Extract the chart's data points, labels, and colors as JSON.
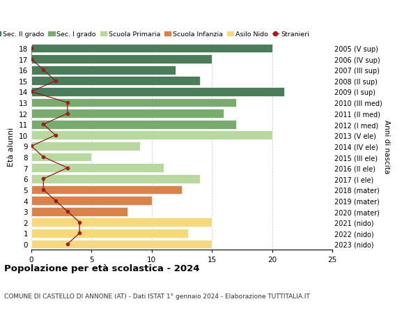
{
  "ages": [
    18,
    17,
    16,
    15,
    14,
    13,
    12,
    11,
    10,
    9,
    8,
    7,
    6,
    5,
    4,
    3,
    2,
    1,
    0
  ],
  "bar_values": [
    20,
    15,
    12,
    14,
    21,
    17,
    16,
    17,
    20,
    9,
    5,
    11,
    14,
    12.5,
    10,
    8,
    15,
    13,
    15
  ],
  "right_labels": [
    "2005 (V sup)",
    "2006 (IV sup)",
    "2007 (III sup)",
    "2008 (II sup)",
    "2009 (I sup)",
    "2010 (III med)",
    "2011 (II med)",
    "2012 (I med)",
    "2013 (V ele)",
    "2014 (IV ele)",
    "2015 (III ele)",
    "2016 (II ele)",
    "2017 (I ele)",
    "2018 (mater)",
    "2019 (mater)",
    "2020 (mater)",
    "2021 (nido)",
    "2022 (nido)",
    "2023 (nido)"
  ],
  "bar_colors": [
    "#4a7c59",
    "#4a7c59",
    "#4a7c59",
    "#4a7c59",
    "#4a7c59",
    "#7aab6e",
    "#7aab6e",
    "#7aab6e",
    "#b8d8a0",
    "#b8d8a0",
    "#b8d8a0",
    "#b8d8a0",
    "#b8d8a0",
    "#d9824a",
    "#d9824a",
    "#d9824a",
    "#f5d97a",
    "#f5d97a",
    "#f5d97a"
  ],
  "stranieri_vals": [
    0,
    0,
    1,
    2,
    0,
    3,
    3,
    1,
    2,
    0,
    1,
    3,
    1,
    1,
    2,
    3,
    4,
    4,
    3
  ],
  "legend_labels": [
    "Sec. II grado",
    "Sec. I grado",
    "Scuola Primaria",
    "Scuola Infanzia",
    "Asilo Nido",
    "Stranieri"
  ],
  "legend_colors": [
    "#4a7c59",
    "#7aab6e",
    "#b8d8a0",
    "#d9824a",
    "#f5d97a",
    "#a02020"
  ],
  "ylabel": "Età alunni",
  "right_ylabel": "Anni di nascita",
  "title": "Popolazione per età scolastica - 2024",
  "subtitle": "COMUNE DI CASTELLO DI ANNONE (AT) - Dati ISTAT 1° gennaio 2024 - Elaborazione TUTTITALIA.IT",
  "xlim": [
    0,
    25
  ],
  "background_color": "#ffffff",
  "bar_height": 0.82,
  "grid_color": "#cccccc"
}
